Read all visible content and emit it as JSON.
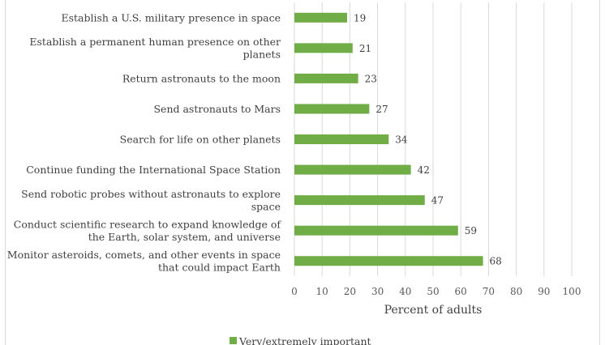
{
  "chart_data": {
    "type": "bar",
    "orientation": "horizontal",
    "categories": [
      [
        "Establish a U.S. military presence in space"
      ],
      [
        "Establish a permanent human presence on other",
        "planets"
      ],
      [
        "Return astronauts to the moon"
      ],
      [
        "Send astronauts to Mars"
      ],
      [
        "Search for life on other planets"
      ],
      [
        "Continue funding the International Space Station"
      ],
      [
        "Send robotic probes without astronauts to explore",
        "space"
      ],
      [
        "Conduct scientific research to expand knowledge of",
        "the Earth, solar system, and universe"
      ],
      [
        "Monitor asteroids, comets, and other events in space",
        "that could impact Earth"
      ]
    ],
    "series": [
      {
        "name": "Very/extremely important",
        "values": [
          19,
          21,
          23,
          27,
          34,
          42,
          47,
          59,
          68
        ]
      }
    ],
    "xlabel": "Percent of adults",
    "xlim": [
      0,
      100
    ],
    "xticks": [
      0,
      10,
      20,
      30,
      40,
      50,
      60,
      70,
      80,
      90,
      100
    ],
    "grid": true,
    "legend": "bottom",
    "colors": {
      "bar": "#70ad47",
      "grid": "#d9d9d9",
      "text": "#404040"
    }
  }
}
